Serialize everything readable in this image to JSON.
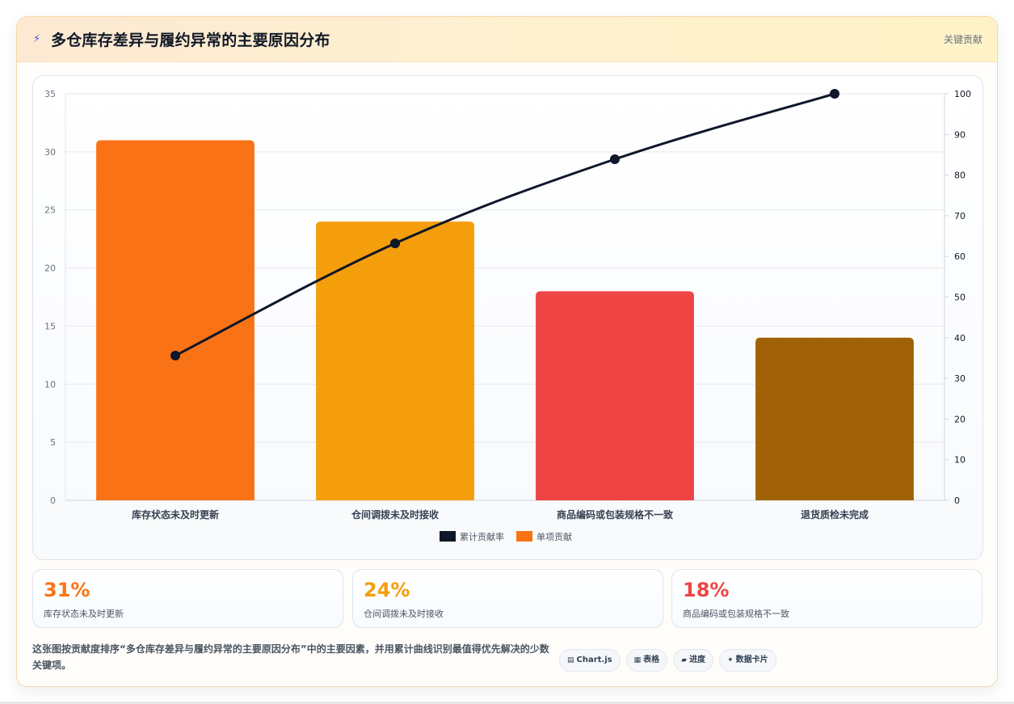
{
  "header": {
    "title_icon": "lightning-icon",
    "title": "多仓库存差异与履约异常的主要原因分布",
    "badge": "关键贡献"
  },
  "chart_data": {
    "type": "bar",
    "categories": [
      "库存状态未及时更新",
      "仓间调拨未及时接收",
      "商品编码或包装规格不一致",
      "退货质检未完成"
    ],
    "series": [
      {
        "name": "单项贡献",
        "type": "bar",
        "axis": "left",
        "values": [
          31,
          24,
          18,
          14
        ],
        "colors": [
          "#f97316",
          "#f59e0b",
          "#ef4444",
          "#a16207"
        ]
      },
      {
        "name": "累计贡献率",
        "type": "line",
        "axis": "right",
        "values": [
          35.6,
          63.2,
          83.9,
          100
        ],
        "color": "#0f172a"
      }
    ],
    "y_left": {
      "min": 0,
      "max": 35,
      "ticks": [
        0,
        5,
        10,
        15,
        20,
        25,
        30,
        35
      ]
    },
    "y_right": {
      "min": 0,
      "max": 100,
      "ticks": [
        0,
        10,
        20,
        30,
        40,
        50,
        60,
        70,
        80,
        90,
        100
      ]
    },
    "legend": {
      "placement": "bottom-center",
      "items": [
        {
          "label": "累计贡献率",
          "color": "#0f172a"
        },
        {
          "label": "单项贡献",
          "color": "#f97316"
        }
      ]
    },
    "grid": true
  },
  "stats": [
    {
      "value": "31%",
      "label": "库存状态未及时更新",
      "color": "#f97316"
    },
    {
      "value": "24%",
      "label": "仓间调拨未及时接收",
      "color": "#f59e0b"
    },
    {
      "value": "18%",
      "label": "商品编码或包装规格不一致",
      "color": "#ef4444"
    }
  ],
  "description": "这张图按贡献度排序“多仓库存差异与履约异常的主要原因分布”中的主要因素，并用累计曲线识别最值得优先解决的少数关键项。",
  "tags": [
    {
      "icon": "▤",
      "icon_name": "chart-icon",
      "label": "Chart.js"
    },
    {
      "icon": "▦",
      "icon_name": "table-icon",
      "label": "表格"
    },
    {
      "icon": "▰",
      "icon_name": "progress-icon",
      "label": "进度"
    },
    {
      "icon": "✦",
      "icon_name": "sparkle-icon",
      "label": "数据卡片"
    }
  ]
}
